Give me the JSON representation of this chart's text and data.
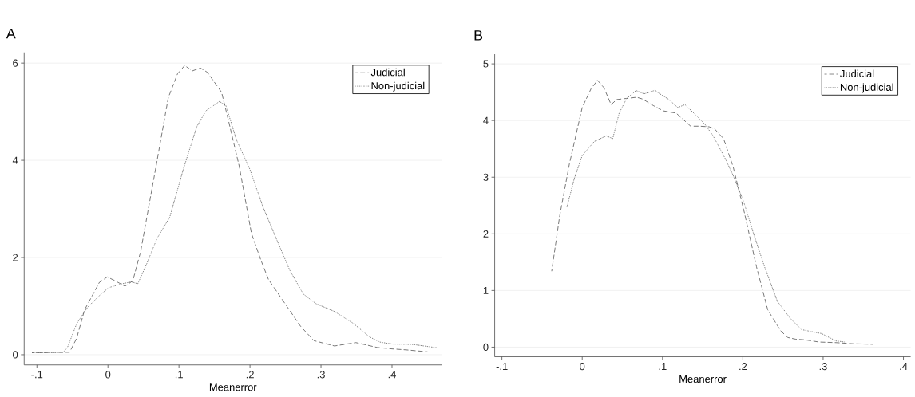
{
  "chart_data": [
    {
      "type": "line",
      "title": "A",
      "xlabel": "Meanerror",
      "xlim": [
        -0.118,
        0.47
      ],
      "ylim": [
        -0.21,
        6.22
      ],
      "xticks": [
        {
          "value": -0.1,
          "label": "-.1"
        },
        0,
        {
          "value": 0.1,
          "label": ".1"
        },
        {
          "value": 0.2,
          "label": ".2"
        },
        {
          "value": 0.3,
          "label": ".3"
        },
        {
          "value": 0.4,
          "label": ".4"
        }
      ],
      "yticks": [
        0,
        2,
        4,
        6
      ],
      "grid": "y",
      "legend": "top right",
      "series": [
        {
          "name": "Judicial",
          "color": "#555555",
          "line_style": "dashed",
          "x": [
            -0.107,
            -0.066,
            -0.054,
            -0.044,
            -0.033,
            -0.012,
            -0.001,
            0.009,
            0.024,
            0.035,
            0.046,
            0.069,
            0.085,
            0.098,
            0.108,
            0.119,
            0.13,
            0.14,
            0.16,
            0.17,
            0.185,
            0.202,
            0.215,
            0.226,
            0.248,
            0.271,
            0.29,
            0.319,
            0.349,
            0.379,
            0.4,
            0.42,
            0.45
          ],
          "values": [
            0.04,
            0.05,
            0.05,
            0.34,
            0.92,
            1.49,
            1.6,
            1.53,
            1.41,
            1.52,
            2.12,
            3.98,
            5.29,
            5.78,
            5.95,
            5.84,
            5.9,
            5.81,
            5.4,
            4.8,
            3.87,
            2.5,
            1.96,
            1.55,
            1.08,
            0.59,
            0.29,
            0.18,
            0.25,
            0.15,
            0.12,
            0.1,
            0.06
          ]
        },
        {
          "name": "Non-judicial",
          "color": "#666666",
          "line_style": "dotted",
          "x": [
            -0.107,
            -0.063,
            -0.057,
            -0.044,
            -0.029,
            -0.014,
            0.001,
            0.02,
            0.033,
            0.042,
            0.054,
            0.069,
            0.087,
            0.106,
            0.125,
            0.138,
            0.157,
            0.166,
            0.181,
            0.2,
            0.218,
            0.237,
            0.256,
            0.275,
            0.293,
            0.319,
            0.346,
            0.368,
            0.383,
            0.4,
            0.43,
            0.465
          ],
          "values": [
            0.04,
            0.05,
            0.15,
            0.64,
            0.97,
            1.19,
            1.38,
            1.46,
            1.5,
            1.46,
            1.85,
            2.39,
            2.83,
            3.81,
            4.69,
            5.02,
            5.21,
            5.13,
            4.42,
            3.81,
            3.05,
            2.39,
            1.74,
            1.25,
            1.05,
            0.89,
            0.64,
            0.37,
            0.26,
            0.22,
            0.21,
            0.14
          ]
        }
      ]
    },
    {
      "type": "line",
      "title": "B",
      "xlabel": "Meanerror",
      "xlim": [
        -0.109,
        0.409
      ],
      "ylim": [
        -0.17,
        5.17
      ],
      "xticks": [
        {
          "value": -0.1,
          "label": "-.1"
        },
        0,
        {
          "value": 0.1,
          "label": ".1"
        },
        {
          "value": 0.2,
          "label": ".2"
        },
        {
          "value": 0.3,
          "label": ".3"
        },
        {
          "value": 0.4,
          "label": ".4"
        }
      ],
      "yticks": [
        0,
        1,
        2,
        3,
        4,
        5
      ],
      "grid": "y",
      "legend": "top right",
      "series": [
        {
          "name": "Judicial",
          "color": "#555555",
          "line_style": "dashed",
          "x": [
            -0.038,
            -0.028,
            -0.016,
            0.0,
            0.011,
            0.019,
            0.027,
            0.036,
            0.043,
            0.055,
            0.068,
            0.075,
            0.089,
            0.101,
            0.117,
            0.135,
            0.146,
            0.158,
            0.165,
            0.176,
            0.188,
            0.202,
            0.217,
            0.231,
            0.247,
            0.256,
            0.266,
            0.277,
            0.295,
            0.316,
            0.337,
            0.362
          ],
          "values": [
            1.34,
            2.32,
            3.23,
            4.23,
            4.56,
            4.71,
            4.58,
            4.28,
            4.37,
            4.39,
            4.41,
            4.38,
            4.26,
            4.17,
            4.13,
            3.9,
            3.9,
            3.89,
            3.85,
            3.68,
            3.18,
            2.37,
            1.42,
            0.66,
            0.29,
            0.17,
            0.14,
            0.13,
            0.09,
            0.08,
            0.06,
            0.05
          ]
        },
        {
          "name": "Non-judicial",
          "color": "#666666",
          "line_style": "dotted",
          "x": [
            -0.019,
            -0.01,
            0.0,
            0.015,
            0.03,
            0.038,
            0.046,
            0.055,
            0.067,
            0.077,
            0.09,
            0.107,
            0.119,
            0.128,
            0.139,
            0.153,
            0.163,
            0.178,
            0.188,
            0.201,
            0.213,
            0.227,
            0.243,
            0.259,
            0.273,
            0.298,
            0.316,
            0.327
          ],
          "values": [
            2.47,
            2.97,
            3.38,
            3.63,
            3.73,
            3.68,
            4.13,
            4.38,
            4.53,
            4.47,
            4.53,
            4.38,
            4.23,
            4.28,
            4.13,
            3.93,
            3.73,
            3.33,
            3.03,
            2.57,
            2.02,
            1.42,
            0.81,
            0.51,
            0.31,
            0.24,
            0.11,
            0.09
          ]
        }
      ]
    }
  ]
}
